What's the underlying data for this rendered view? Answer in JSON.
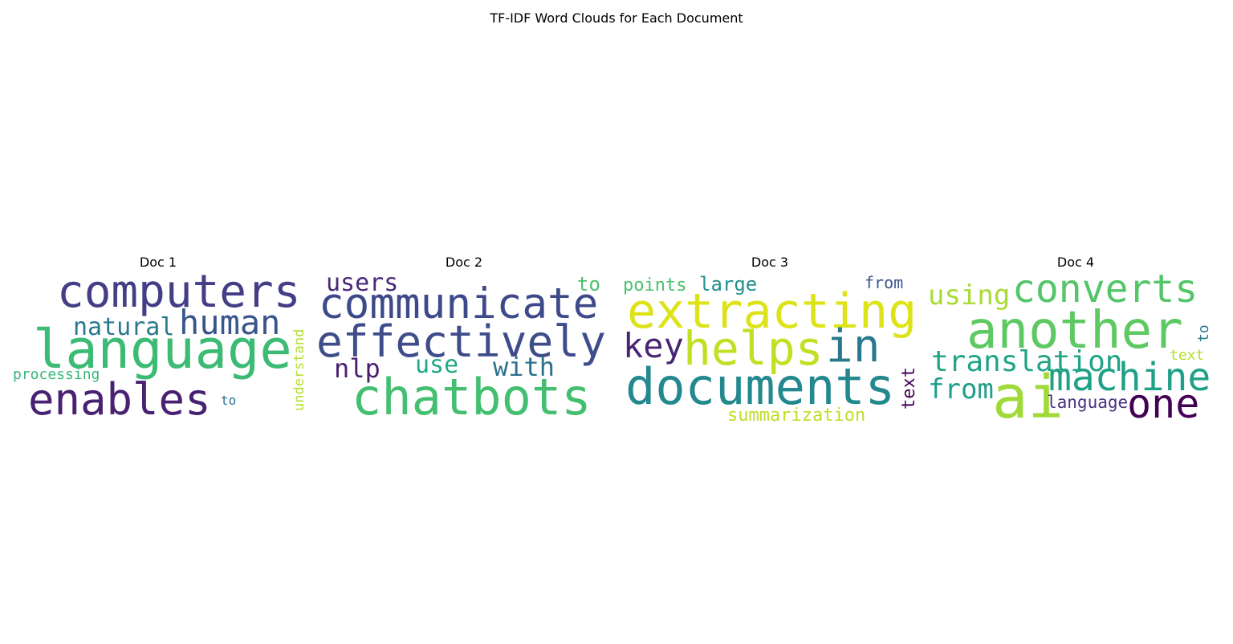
{
  "chart_data": {
    "type": "wordcloud",
    "title": "TF-IDF Word Clouds for Each Document",
    "panels": [
      {
        "title": "Doc 1",
        "words": [
          {
            "text": "computers",
            "color": "#433e85"
          },
          {
            "text": "language",
            "color": "#3cbb75"
          },
          {
            "text": "human",
            "color": "#39568c"
          },
          {
            "text": "natural",
            "color": "#2a788e"
          },
          {
            "text": "understand",
            "color": "#b5de2b"
          },
          {
            "text": "processing",
            "color": "#35b779"
          },
          {
            "text": "enables",
            "color": "#482173"
          },
          {
            "text": "to",
            "color": "#2c728e"
          }
        ]
      },
      {
        "title": "Doc 2",
        "words": [
          {
            "text": "users",
            "color": "#482878"
          },
          {
            "text": "to",
            "color": "#4ac16d"
          },
          {
            "text": "communicate",
            "color": "#3e4989"
          },
          {
            "text": "effectively",
            "color": "#3e4c8a"
          },
          {
            "text": "nlp",
            "color": "#481f70"
          },
          {
            "text": "use",
            "color": "#22a884"
          },
          {
            "text": "with",
            "color": "#2d708e"
          },
          {
            "text": "chatbots",
            "color": "#44bf70"
          }
        ]
      },
      {
        "title": "Doc 3",
        "words": [
          {
            "text": "points",
            "color": "#4ac16d"
          },
          {
            "text": "large",
            "color": "#21908d"
          },
          {
            "text": "from",
            "color": "#3b528b"
          },
          {
            "text": "extracting",
            "color": "#dde318"
          },
          {
            "text": "key",
            "color": "#482475"
          },
          {
            "text": "helps",
            "color": "#c2df23"
          },
          {
            "text": "in",
            "color": "#2a788e"
          },
          {
            "text": "documents",
            "color": "#23898e"
          },
          {
            "text": "text",
            "color": "#440154"
          },
          {
            "text": "summarization",
            "color": "#bddf26"
          }
        ]
      },
      {
        "title": "Doc 4",
        "words": [
          {
            "text": "using",
            "color": "#a8db34"
          },
          {
            "text": "converts",
            "color": "#54c568"
          },
          {
            "text": "another",
            "color": "#5ec962"
          },
          {
            "text": "to",
            "color": "#2a788e"
          },
          {
            "text": "text",
            "color": "#b5de2b"
          },
          {
            "text": "translation",
            "color": "#20a486"
          },
          {
            "text": "machine",
            "color": "#1fa187"
          },
          {
            "text": "from",
            "color": "#1f9e89"
          },
          {
            "text": "ai",
            "color": "#a0da39"
          },
          {
            "text": "language",
            "color": "#46327e"
          },
          {
            "text": "one",
            "color": "#440154"
          }
        ]
      }
    ]
  }
}
